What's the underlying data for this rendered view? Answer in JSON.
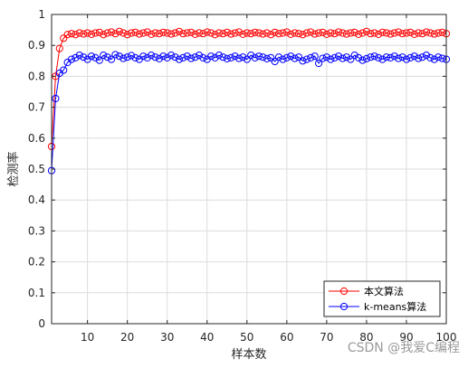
{
  "chart_data": {
    "type": "line",
    "title": "",
    "xlabel": "样本数",
    "ylabel": "检测率",
    "xlim": [
      1,
      100
    ],
    "ylim": [
      0,
      1
    ],
    "xticks": [
      10,
      20,
      30,
      40,
      50,
      60,
      70,
      80,
      90,
      100
    ],
    "yticks": [
      0,
      0.1,
      0.2,
      0.3,
      0.4,
      0.5,
      0.6,
      0.7,
      0.8,
      0.9,
      1
    ],
    "xtick_labels": [
      "10",
      "20",
      "30",
      "40",
      "50",
      "60",
      "70",
      "80",
      "90",
      "100"
    ],
    "ytick_labels": [
      "0",
      "0.1",
      "0.2",
      "0.3",
      "0.4",
      "0.5",
      "0.6",
      "0.7",
      "0.8",
      "0.9",
      "1"
    ],
    "grid": true,
    "legend_position": "bottom-right",
    "x": [
      1,
      2,
      3,
      4,
      5,
      6,
      7,
      8,
      9,
      10,
      11,
      12,
      13,
      14,
      15,
      16,
      17,
      18,
      19,
      20,
      21,
      22,
      23,
      24,
      25,
      26,
      27,
      28,
      29,
      30,
      31,
      32,
      33,
      34,
      35,
      36,
      37,
      38,
      39,
      40,
      41,
      42,
      43,
      44,
      45,
      46,
      47,
      48,
      49,
      50,
      51,
      52,
      53,
      54,
      55,
      56,
      57,
      58,
      59,
      60,
      61,
      62,
      63,
      64,
      65,
      66,
      67,
      68,
      69,
      70,
      71,
      72,
      73,
      74,
      75,
      76,
      77,
      78,
      79,
      80,
      81,
      82,
      83,
      84,
      85,
      86,
      87,
      88,
      89,
      90,
      91,
      92,
      93,
      94,
      95,
      96,
      97,
      98,
      99,
      100
    ],
    "series": [
      {
        "name": "本文算法",
        "color": "#ff0000",
        "marker": "circle",
        "values": [
          0.573,
          0.8,
          0.89,
          0.923,
          0.935,
          0.938,
          0.935,
          0.94,
          0.937,
          0.94,
          0.936,
          0.94,
          0.942,
          0.935,
          0.94,
          0.943,
          0.938,
          0.945,
          0.94,
          0.935,
          0.94,
          0.942,
          0.937,
          0.94,
          0.943,
          0.936,
          0.94,
          0.938,
          0.942,
          0.94,
          0.937,
          0.94,
          0.945,
          0.938,
          0.94,
          0.942,
          0.936,
          0.94,
          0.938,
          0.943,
          0.94,
          0.935,
          0.94,
          0.938,
          0.942,
          0.937,
          0.94,
          0.943,
          0.936,
          0.94,
          0.938,
          0.942,
          0.94,
          0.937,
          0.94,
          0.935,
          0.942,
          0.938,
          0.94,
          0.943,
          0.936,
          0.94,
          0.938,
          0.935,
          0.94,
          0.943,
          0.937,
          0.94,
          0.942,
          0.936,
          0.94,
          0.938,
          0.943,
          0.94,
          0.937,
          0.94,
          0.942,
          0.936,
          0.94,
          0.945,
          0.938,
          0.94,
          0.936,
          0.942,
          0.94,
          0.937,
          0.94,
          0.943,
          0.938,
          0.94,
          0.942,
          0.936,
          0.94,
          0.938,
          0.943,
          0.94,
          0.937,
          0.94,
          0.942,
          0.938
        ]
      },
      {
        "name": "k-means算法",
        "color": "#0000ff",
        "marker": "circle",
        "values": [
          0.495,
          0.728,
          0.81,
          0.82,
          0.845,
          0.855,
          0.86,
          0.868,
          0.862,
          0.855,
          0.865,
          0.86,
          0.852,
          0.868,
          0.862,
          0.855,
          0.87,
          0.865,
          0.858,
          0.862,
          0.867,
          0.86,
          0.855,
          0.865,
          0.86,
          0.868,
          0.862,
          0.857,
          0.865,
          0.86,
          0.868,
          0.862,
          0.855,
          0.86,
          0.865,
          0.858,
          0.862,
          0.868,
          0.86,
          0.855,
          0.865,
          0.86,
          0.868,
          0.862,
          0.857,
          0.86,
          0.865,
          0.858,
          0.862,
          0.855,
          0.868,
          0.86,
          0.865,
          0.862,
          0.857,
          0.86,
          0.848,
          0.862,
          0.855,
          0.86,
          0.865,
          0.858,
          0.862,
          0.85,
          0.855,
          0.86,
          0.865,
          0.842,
          0.858,
          0.862,
          0.855,
          0.86,
          0.865,
          0.858,
          0.862,
          0.855,
          0.868,
          0.86,
          0.852,
          0.857,
          0.862,
          0.865,
          0.86,
          0.855,
          0.862,
          0.86,
          0.865,
          0.858,
          0.862,
          0.855,
          0.86,
          0.865,
          0.858,
          0.862,
          0.868,
          0.86,
          0.855,
          0.862,
          0.858,
          0.855
        ]
      }
    ]
  },
  "watermark": "CSDN @我爱C编程"
}
